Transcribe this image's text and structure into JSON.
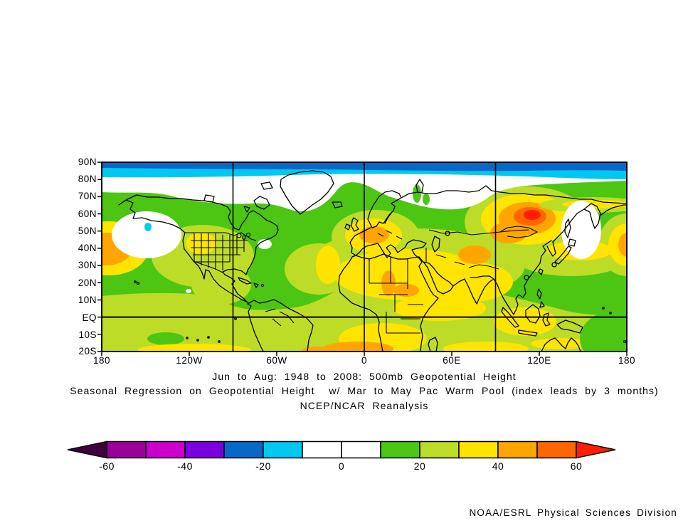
{
  "titles": {
    "line1": "Jun to Aug: 1948 to 2008: 500mb Geopotential Height",
    "line2": "Seasonal Regression on Geopotential Height  w/ Mar to May Pac Warm Pool (index leads by 3 months)",
    "line3": "NCEP/NCAR Reanalysis"
  },
  "credit": "NOAA/ESRL Physical Sciences Division",
  "axes": {
    "lat_labels": [
      "90N",
      "80N",
      "70N",
      "60N",
      "50N",
      "40N",
      "30N",
      "20N",
      "10N",
      "EQ",
      "10S",
      "20S"
    ],
    "lon_labels": [
      "180",
      "120W",
      "60W",
      "0",
      "60E",
      "120E",
      "180"
    ]
  },
  "palette": {
    "dark_purple": "#400040",
    "purple": "#9A009A",
    "magenta": "#CC00CC",
    "violet": "#7A00E0",
    "blue": "#0868C8",
    "cyan": "#00C8F0",
    "white": "#FFFFFF",
    "green": "#4CC613",
    "yellow_green": "#BCDC28",
    "yellow": "#FFE400",
    "orange": "#FFA500",
    "dark_orange": "#FF6600",
    "red": "#FF1E00",
    "outline": "#000000"
  },
  "colorbar": {
    "tick_labels": [
      "-60",
      "-40",
      "-20",
      "0",
      "20",
      "40",
      "60"
    ],
    "segment_colors": [
      "#9A009A",
      "#CC00CC",
      "#7A00E0",
      "#0868C8",
      "#00C8F0",
      "#FFFFFF",
      "#FFFFFF",
      "#4CC613",
      "#BCDC28",
      "#FFE400",
      "#FFA500",
      "#FF6600"
    ],
    "left_arrow_color": "#400040",
    "right_arrow_color": "#FF1E00"
  },
  "chart_data": {
    "type": "heatmap",
    "title": "Jun to Aug: 1948 to 2008: 500mb Geopotential Height",
    "subtitle": "Seasonal Regression on Geopotential Height  w/ Mar to May Pac Warm Pool (index leads by 3 months)",
    "dataset": "NCEP/NCAR Reanalysis",
    "projection": "cylindrical equidistant world map",
    "lon_domain_deg": [
      -180,
      180
    ],
    "lat_domain_deg": [
      -20,
      90
    ],
    "lat_ticks": [
      "90N",
      "80N",
      "70N",
      "60N",
      "50N",
      "40N",
      "30N",
      "20N",
      "10N",
      "EQ",
      "10S",
      "20S"
    ],
    "lon_ticks": [
      "180",
      "120W",
      "60W",
      "0",
      "60E",
      "120E",
      "180"
    ],
    "grid": {
      "meridians_deg": [
        -90,
        0,
        90
      ],
      "parallels_deg": [
        0
      ]
    },
    "colorbar": {
      "ticks": [
        -60,
        -40,
        -20,
        0,
        20,
        40,
        60
      ],
      "segment_interval": 10,
      "segments": [
        {
          "range": "< -60",
          "color": "#400040"
        },
        {
          "range": "-60 to -50",
          "color": "#9A009A"
        },
        {
          "range": "-50 to -40",
          "color": "#CC00CC"
        },
        {
          "range": "-40 to -30",
          "color": "#7A00E0"
        },
        {
          "range": "-30 to -20",
          "color": "#0868C8"
        },
        {
          "range": "-20 to -10",
          "color": "#00C8F0"
        },
        {
          "range": "-10 to 0",
          "color": "#FFFFFF"
        },
        {
          "range": "0 to 10",
          "color": "#FFFFFF"
        },
        {
          "range": "10 to 20",
          "color": "#4CC613"
        },
        {
          "range": "20 to 30",
          "color": "#BCDC28"
        },
        {
          "range": "30 to 40",
          "color": "#FFE400"
        },
        {
          "range": "40 to 50",
          "color": "#FFA500"
        },
        {
          "range": "50 to 60",
          "color": "#FF6600"
        },
        {
          "range": "> 60",
          "color": "#FF1E00"
        }
      ]
    },
    "features": [
      {
        "value_range": "> 60 (red core, 40-60 rings)",
        "description": "Strong positive regression center over southern Siberia / Lake Baikal region",
        "approx_location": "55N 110E"
      },
      {
        "value_range": "-30 to -10",
        "description": "Negative belt along the polar cap edge (blue then cyan bands)",
        "approx_location": "85-90N, all longitudes"
      },
      {
        "value_range": "-10 to 10 (white)",
        "description": "Near-zero pool in Gulf of Alaska with a small -20 to -10 cyan spot",
        "approx_location": "50N 140W"
      },
      {
        "value_range": "-10 to 10 (white)",
        "description": "Near-zero region over Sea of Okhotsk / Kamchatka / northern Japan",
        "approx_location": "50-60N 145-155E"
      },
      {
        "value_range": "-10 to 10 (white)",
        "description": "White band across the Arctic (Greenland, Canadian Archipelago, Barents/Kara seas)",
        "approx_location": "70-85N"
      },
      {
        "value_range": "40 to 60",
        "description": "Positive center at the dateline near 40-50N (appears at both map edges)",
        "approx_location": "45N 180"
      },
      {
        "value_range": "40 to 50",
        "description": "Positive center over central/southern Europe",
        "approx_location": "45N 10E"
      },
      {
        "value_range": "40 to 50",
        "description": "Positive center over Iran / Caspian region",
        "approx_location": "38N 60E"
      },
      {
        "value_range": "30 to 40",
        "description": "Broad yellow band over North Africa, Middle East, South Asia and subtropical Atlantic",
        "approx_location": "10-35N, 30W-90E"
      },
      {
        "value_range": "10 to 30",
        "description": "Green to yellow-green background over most mid-latitudes and tropics"
      },
      {
        "value_range": "30 to 50",
        "description": "Yellow/orange patches in the 10S-20S band (southern Africa, Indian Ocean, SE Pacific)"
      }
    ]
  }
}
